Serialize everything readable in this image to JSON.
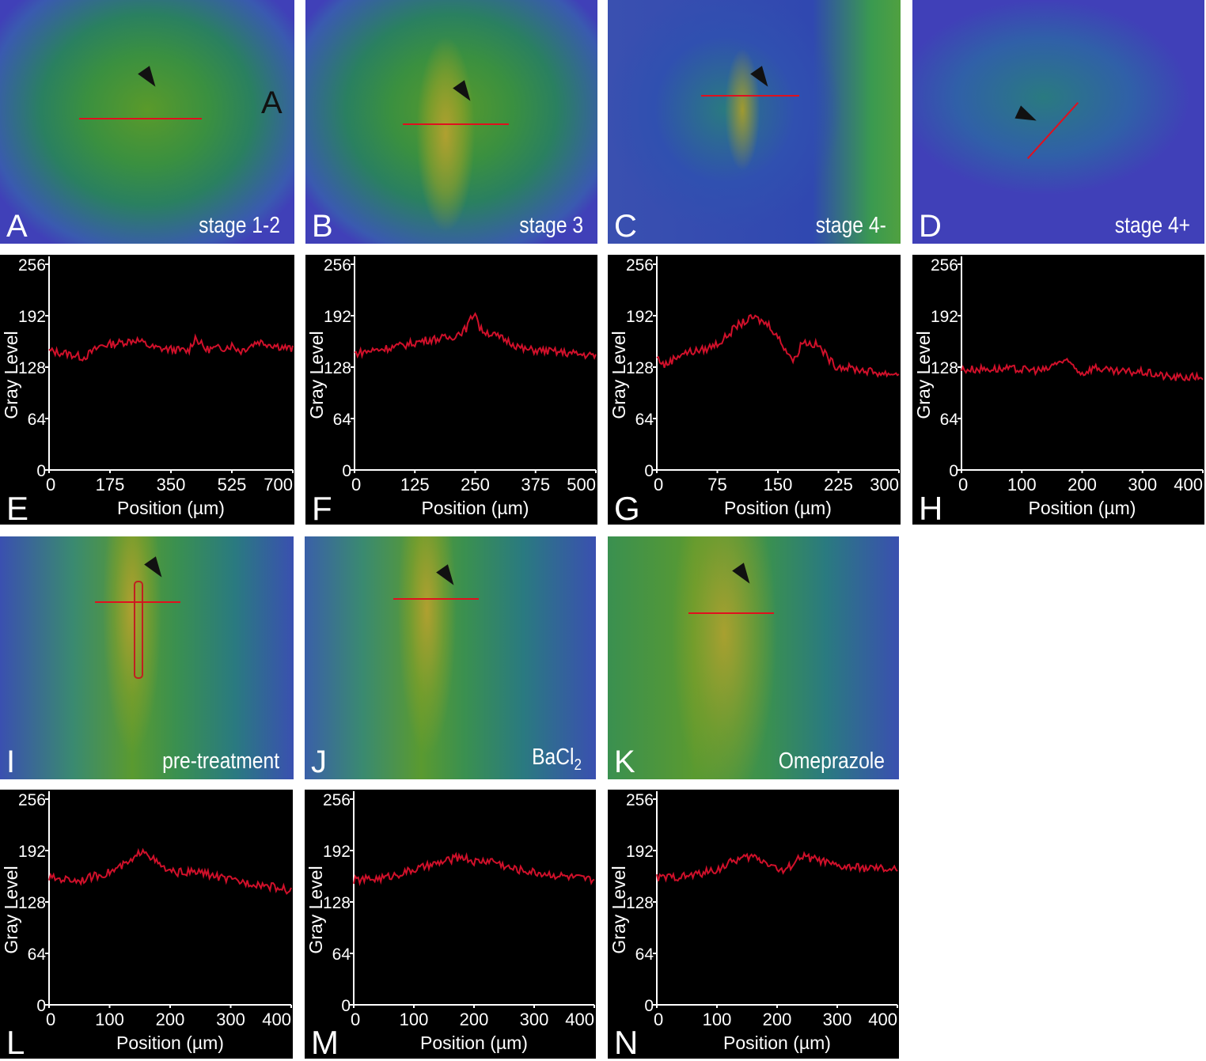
{
  "colors": {
    "trace": "#d0102a",
    "axis": "#ffffff",
    "background": "#000000"
  },
  "images": [
    {
      "letter": "A",
      "label": "stage 1-2",
      "inset_letter": "A"
    },
    {
      "letter": "B",
      "label": "stage 3"
    },
    {
      "letter": "C",
      "label": "stage 4-"
    },
    {
      "letter": "D",
      "label": "stage 4+"
    },
    {
      "letter": "I",
      "label": "pre-treatment"
    },
    {
      "letter": "J",
      "label": "BaCl",
      "label_sub": "2"
    },
    {
      "letter": "K",
      "label": "Omeprazole"
    }
  ],
  "chart_data": [
    {
      "id": "E",
      "type": "line",
      "xlabel": "Position (µm)",
      "ylabel": "Gray Level",
      "xlim": [
        0,
        700
      ],
      "ylim": [
        0,
        256
      ],
      "xticks": [
        "0",
        "175",
        "350",
        "525",
        "700"
      ],
      "yticks": [
        "0",
        "64",
        "128",
        "192",
        "256"
      ],
      "x": [
        0,
        50,
        100,
        150,
        200,
        250,
        300,
        350,
        400,
        420,
        450,
        500,
        525,
        550,
        600,
        650,
        700
      ],
      "y": [
        148,
        145,
        140,
        155,
        158,
        162,
        152,
        150,
        148,
        165,
        150,
        152,
        155,
        148,
        160,
        155,
        150
      ]
    },
    {
      "id": "F",
      "type": "line",
      "xlabel": "Position (µm)",
      "ylabel": "Gray Level",
      "xlim": [
        0,
        500
      ],
      "ylim": [
        0,
        256
      ],
      "xticks": [
        "0",
        "125",
        "250",
        "375",
        "500"
      ],
      "yticks": [
        "0",
        "64",
        "128",
        "192",
        "256"
      ],
      "x": [
        0,
        50,
        100,
        150,
        200,
        230,
        250,
        260,
        300,
        320,
        350,
        400,
        450,
        500
      ],
      "y": [
        145,
        150,
        155,
        162,
        165,
        175,
        198,
        175,
        165,
        160,
        150,
        148,
        145,
        142
      ]
    },
    {
      "id": "G",
      "type": "line",
      "xlabel": "Position (µm)",
      "ylabel": "Gray Level",
      "xlim": [
        0,
        300
      ],
      "ylim": [
        0,
        256
      ],
      "xticks": [
        "0",
        "75",
        "150",
        "225",
        "300"
      ],
      "yticks": [
        "0",
        "64",
        "128",
        "192",
        "256"
      ],
      "x": [
        0,
        10,
        30,
        60,
        80,
        100,
        120,
        140,
        160,
        170,
        180,
        200,
        220,
        250,
        280,
        300
      ],
      "y": [
        140,
        130,
        145,
        150,
        160,
        180,
        190,
        180,
        150,
        135,
        160,
        155,
        130,
        125,
        120,
        120
      ]
    },
    {
      "id": "H",
      "type": "line",
      "xlabel": "Position (µm)",
      "ylabel": "Gray Level",
      "xlim": [
        0,
        400
      ],
      "ylim": [
        0,
        256
      ],
      "xticks": [
        "0",
        "100",
        "200",
        "300",
        "400"
      ],
      "yticks": [
        "0",
        "64",
        "128",
        "192",
        "256"
      ],
      "x": [
        0,
        50,
        100,
        140,
        160,
        180,
        200,
        220,
        250,
        300,
        350,
        400
      ],
      "y": [
        125,
        126,
        125,
        124,
        135,
        133,
        120,
        128,
        122,
        122,
        115,
        116
      ]
    },
    {
      "id": "L",
      "type": "line",
      "xlabel": "Position (µm)",
      "ylabel": "Gray Level",
      "xlim": [
        0,
        400
      ],
      "ylim": [
        0,
        256
      ],
      "xticks": [
        "0",
        "100",
        "200",
        "300",
        "400"
      ],
      "yticks": [
        "0",
        "64",
        "128",
        "192",
        "256"
      ],
      "x": [
        0,
        50,
        100,
        140,
        155,
        180,
        200,
        250,
        300,
        350,
        400
      ],
      "y": [
        158,
        155,
        165,
        180,
        195,
        175,
        165,
        165,
        155,
        150,
        142
      ]
    },
    {
      "id": "M",
      "type": "line",
      "xlabel": "Position (µm)",
      "ylabel": "Gray Level",
      "xlim": [
        0,
        400
      ],
      "ylim": [
        0,
        256
      ],
      "xticks": [
        "0",
        "100",
        "200",
        "300",
        "400"
      ],
      "yticks": [
        "0",
        "64",
        "128",
        "192",
        "256"
      ],
      "x": [
        0,
        50,
        100,
        150,
        180,
        200,
        230,
        260,
        300,
        350,
        400
      ],
      "y": [
        155,
        158,
        168,
        178,
        185,
        178,
        180,
        170,
        165,
        160,
        155
      ]
    },
    {
      "id": "N",
      "type": "line",
      "xlabel": "Position (µm)",
      "ylabel": "Gray Level",
      "xlim": [
        0,
        400
      ],
      "ylim": [
        0,
        256
      ],
      "xticks": [
        "0",
        "100",
        "200",
        "300",
        "400"
      ],
      "yticks": [
        "0",
        "64",
        "128",
        "192",
        "256"
      ],
      "x": [
        0,
        50,
        100,
        130,
        160,
        190,
        210,
        240,
        270,
        300,
        350,
        400
      ],
      "y": [
        158,
        160,
        168,
        180,
        185,
        175,
        165,
        185,
        180,
        172,
        170,
        168
      ]
    }
  ]
}
